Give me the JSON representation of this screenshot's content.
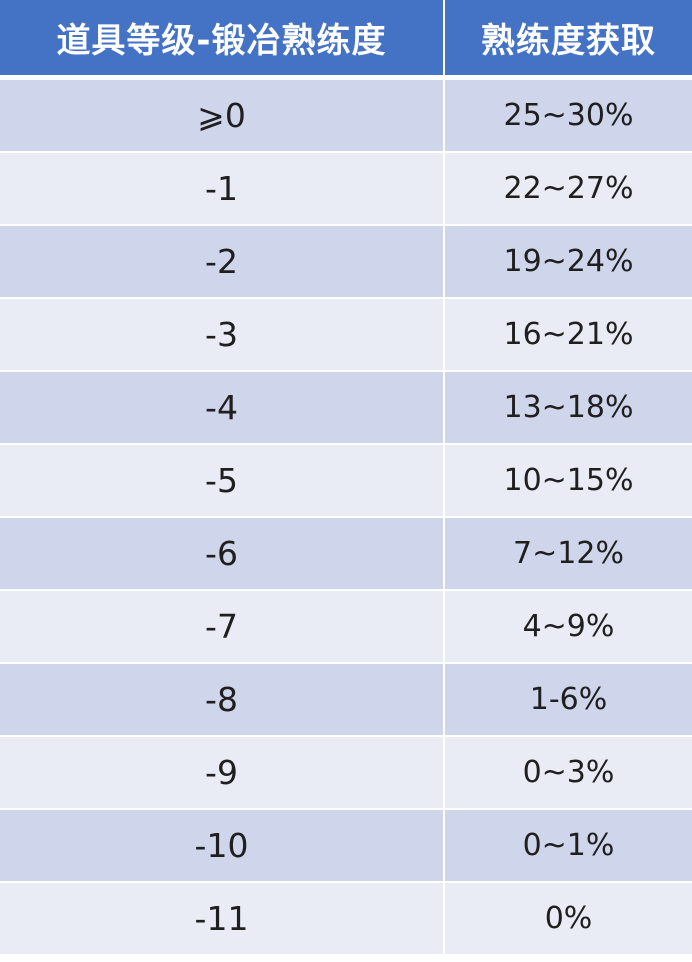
{
  "headers": [
    "道具等级-锻冶熟练度",
    "熟练度获取"
  ],
  "rows": [
    [
      "⩾0",
      "25~30%"
    ],
    [
      "-1",
      "22~27%"
    ],
    [
      "-2",
      "19~24%"
    ],
    [
      "-3",
      "16~21%"
    ],
    [
      "-4",
      "13~18%"
    ],
    [
      "-5",
      "10~15%"
    ],
    [
      "-6",
      "7~12%"
    ],
    [
      "-7",
      "4~9%"
    ],
    [
      "-8",
      "1-6%"
    ],
    [
      "-9",
      "0~3%"
    ],
    [
      "-10",
      "0~1%"
    ],
    [
      "-11",
      "0%"
    ]
  ],
  "colors": {
    "header_bg": "#4472c4",
    "row_odd_bg": "#cfd5ea",
    "row_even_bg": "#e9ebf5",
    "header_text": "#ffffff",
    "body_text": "#1f1f1f"
  }
}
